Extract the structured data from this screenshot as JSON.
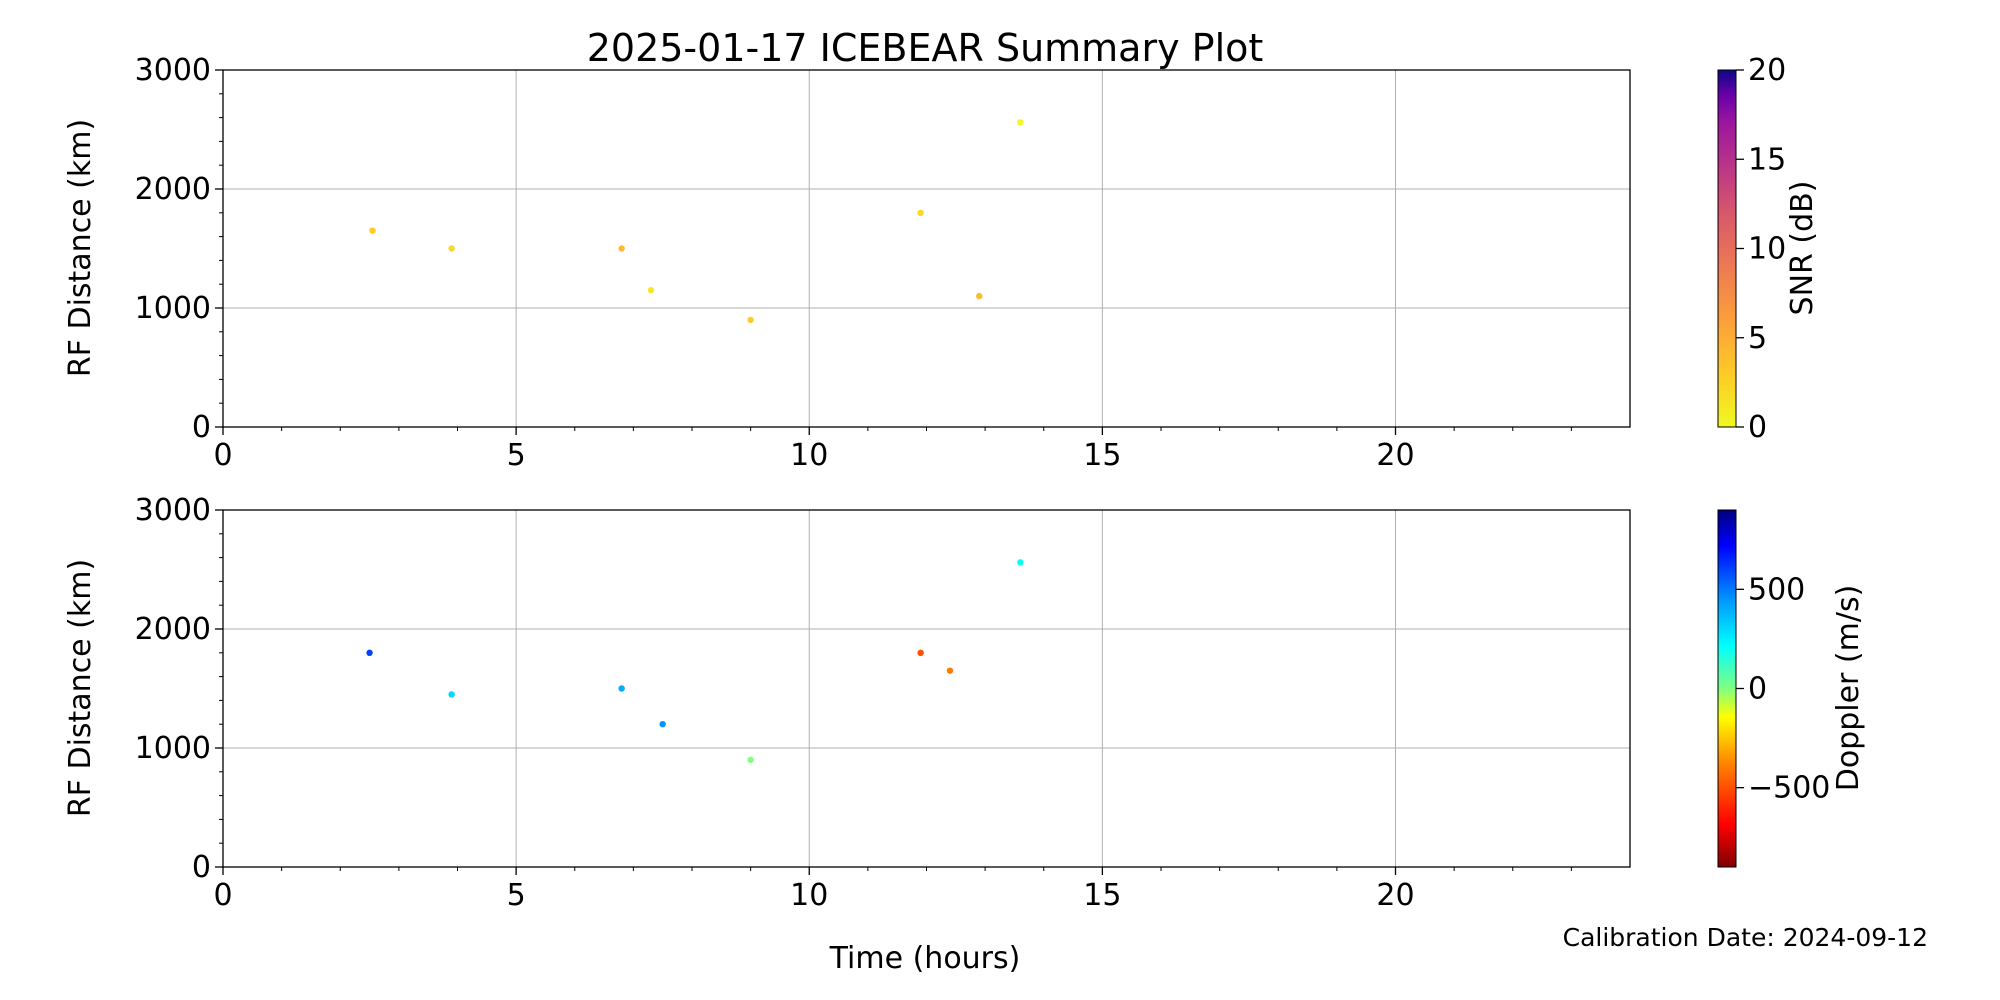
{
  "figure": {
    "title": "2025-01-17 ICEBEAR Summary Plot",
    "xlabel": "Time (hours)",
    "calibration": "Calibration Date: 2024-09-12"
  },
  "chart_data": [
    {
      "type": "scatter",
      "panel": "top",
      "ylabel": "RF Distance (km)",
      "xlim": [
        0,
        24
      ],
      "ylim": [
        0,
        3000
      ],
      "xticks": [
        "0",
        "5",
        "10",
        "15",
        "20"
      ],
      "yticks": [
        "0",
        "1000",
        "2000",
        "3000"
      ],
      "grid": true,
      "color_by": "snr",
      "colorbar": {
        "label": "SNR (dB)",
        "colormap": "plasma_r",
        "range": [
          0,
          20
        ],
        "ticks": [
          "0",
          "5",
          "10",
          "15",
          "20"
        ]
      },
      "series": [
        {
          "x": 2.55,
          "y": 1650,
          "snr": 3
        },
        {
          "x": 3.9,
          "y": 1500,
          "snr": 2
        },
        {
          "x": 6.8,
          "y": 1500,
          "snr": 4
        },
        {
          "x": 7.3,
          "y": 1150,
          "snr": 1
        },
        {
          "x": 11.9,
          "y": 1800,
          "snr": 2
        },
        {
          "x": 12.9,
          "y": 1100,
          "snr": 4
        },
        {
          "x": 9.0,
          "y": 900,
          "snr": 3
        },
        {
          "x": 13.6,
          "y": 2560,
          "snr": 0
        }
      ]
    },
    {
      "type": "scatter",
      "panel": "bottom",
      "ylabel": "RF Distance (km)",
      "xlim": [
        0,
        24
      ],
      "ylim": [
        0,
        3000
      ],
      "xticks": [
        "0",
        "5",
        "10",
        "15",
        "20"
      ],
      "yticks": [
        "0",
        "1000",
        "2000",
        "3000"
      ],
      "grid": true,
      "color_by": "doppler",
      "colorbar": {
        "label": "Doppler (m/s)",
        "colormap": "jet_r",
        "range": [
          -900,
          900
        ],
        "ticks": [
          "500",
          "0",
          "−500"
        ]
      },
      "series": [
        {
          "x": 2.5,
          "y": 1800,
          "doppler": 600
        },
        {
          "x": 3.9,
          "y": 1450,
          "doppler": 300
        },
        {
          "x": 6.8,
          "y": 1500,
          "doppler": 400
        },
        {
          "x": 7.5,
          "y": 1200,
          "doppler": 450
        },
        {
          "x": 11.9,
          "y": 1800,
          "doppler": -500
        },
        {
          "x": 12.4,
          "y": 1650,
          "doppler": -400
        },
        {
          "x": 9.0,
          "y": 900,
          "doppler": 0
        },
        {
          "x": 13.6,
          "y": 2560,
          "doppler": 200
        }
      ]
    }
  ]
}
